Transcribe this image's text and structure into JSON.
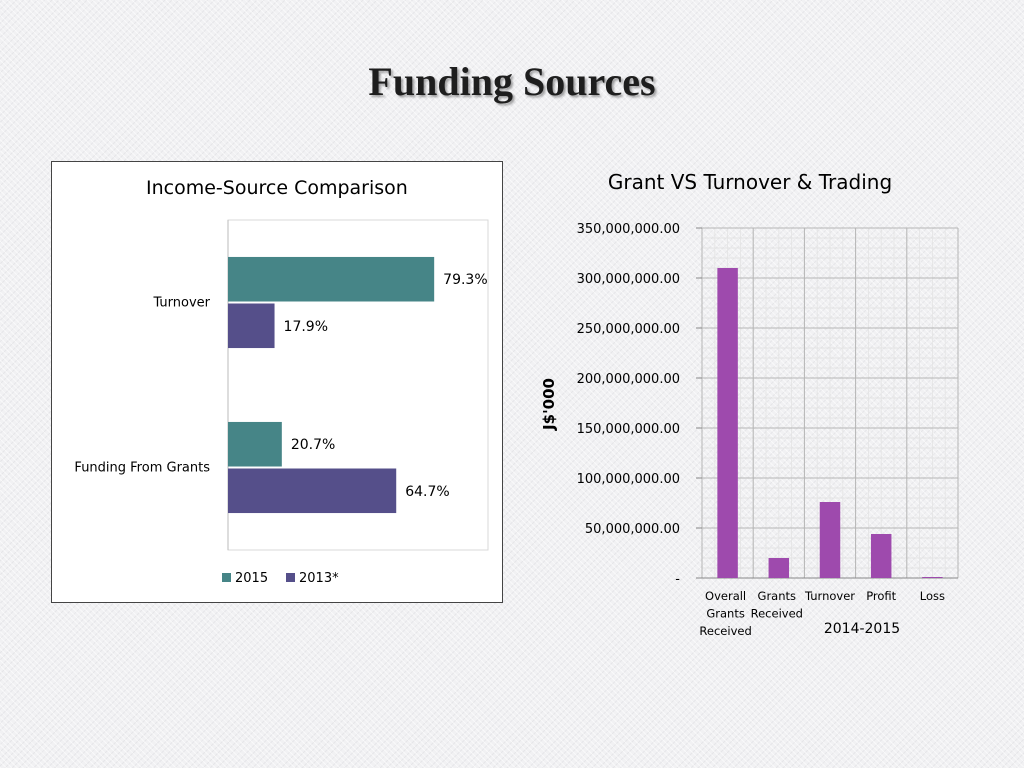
{
  "page": {
    "title": "Funding Sources"
  },
  "colors": {
    "series_2015": "#468587",
    "series_2013": "#554f8a",
    "bars_right": "#9e4aad",
    "grid": "#c8c8c8"
  },
  "chart_data": [
    {
      "type": "bar",
      "orientation": "horizontal",
      "title": "Income-Source Comparison",
      "categories": [
        "Turnover",
        "Funding From Grants"
      ],
      "series": [
        {
          "name": "2015",
          "values": [
            79.3,
            20.7
          ],
          "labels": [
            "79.3%",
            "20.7%"
          ]
        },
        {
          "name": "2013*",
          "values": [
            17.9,
            64.7
          ],
          "labels": [
            "17.9%",
            "64.7%"
          ]
        }
      ],
      "xlim": [
        0,
        100
      ],
      "legend": "bottom"
    },
    {
      "type": "bar",
      "title": "Grant VS Turnover & Trading",
      "categories": [
        [
          "Overall",
          "Grants",
          "Received"
        ],
        [
          "Grants",
          "Received"
        ],
        [
          "Turnover"
        ],
        [
          "Profit"
        ],
        [
          "Loss"
        ]
      ],
      "values": [
        310000000,
        20000000,
        76000000,
        44000000,
        1000000
      ],
      "ylabel": "J$'000",
      "xlabel": "2014-2015",
      "ylim": [
        0,
        350000000
      ],
      "yticks": [
        0,
        50000000,
        100000000,
        150000000,
        200000000,
        250000000,
        300000000,
        350000000
      ],
      "ytick_labels": [
        "-",
        "50,000,000.00",
        "100,000,000.00",
        "150,000,000.00",
        "200,000,000.00",
        "250,000,000.00",
        "300,000,000.00",
        "350,000,000.00"
      ],
      "grid": true,
      "legend": "none"
    }
  ]
}
